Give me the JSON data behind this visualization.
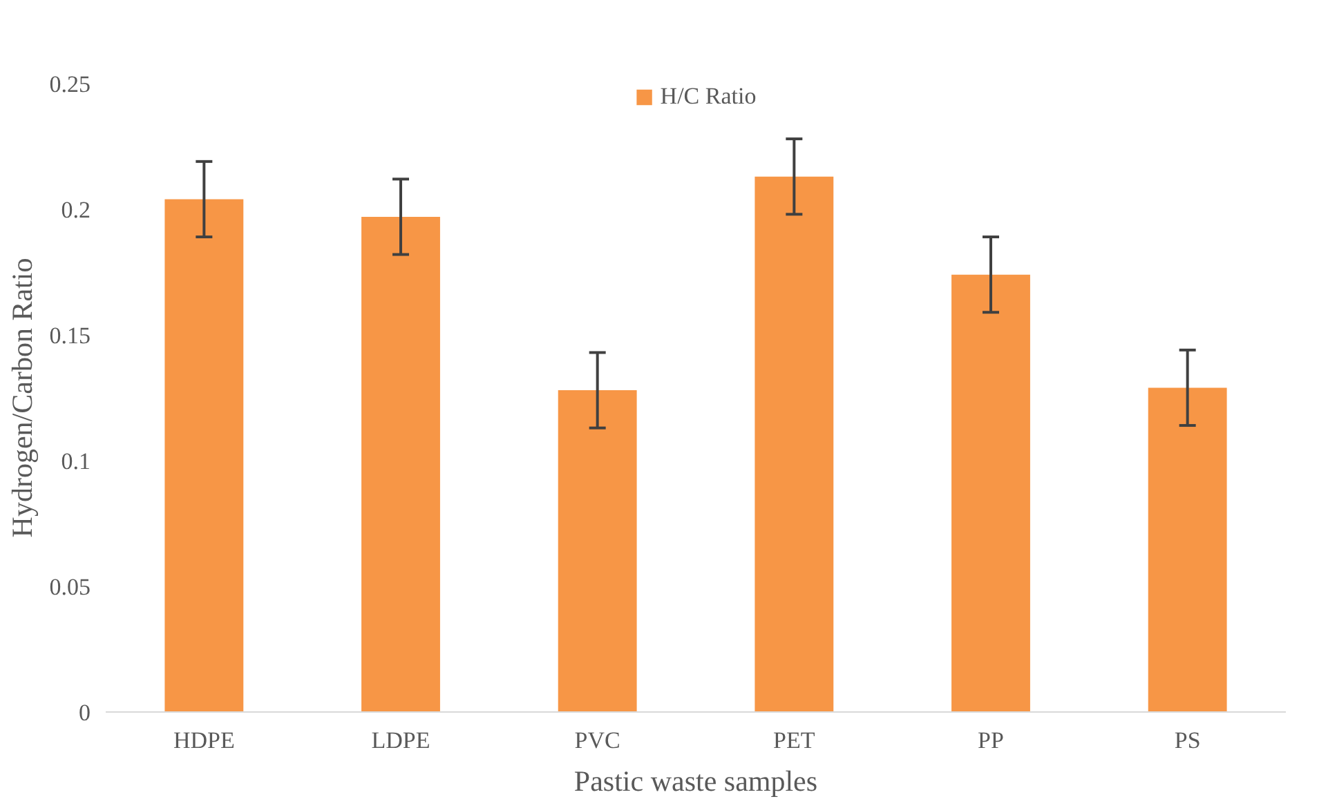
{
  "chart_data": {
    "type": "bar",
    "xlabel": "Pastic waste samples",
    "ylabel": "Hydrogen/Carbon Ratio",
    "categories": [
      "HDPE",
      "LDPE",
      "PVC",
      "PET",
      "PP",
      "PS"
    ],
    "series": [
      {
        "name": "H/C Ratio",
        "color": "#f79646",
        "values": [
          0.204,
          0.197,
          0.128,
          0.213,
          0.174,
          0.129
        ],
        "errors": [
          0.015,
          0.015,
          0.015,
          0.015,
          0.015,
          0.015
        ]
      }
    ],
    "ylim": [
      0,
      0.25
    ],
    "yticks": [
      {
        "value": 0,
        "label": "0"
      },
      0.05,
      {
        "value": 0.1,
        "label": "0.1"
      },
      0.15,
      {
        "value": 0.2,
        "label": "0.2"
      },
      0.25
    ],
    "grid": false,
    "legend": "top"
  }
}
